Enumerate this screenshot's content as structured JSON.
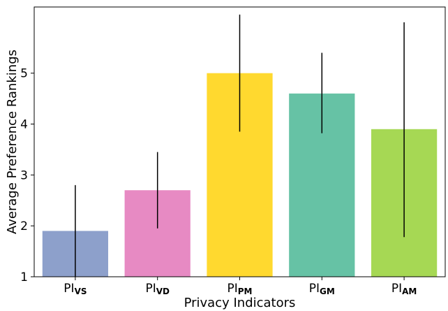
{
  "chart_data": {
    "type": "bar",
    "xlabel": "Privacy Indicators",
    "ylabel": "Average Preference Rankings",
    "ylim": [
      1,
      6.3
    ],
    "yticks": [
      1,
      2,
      3,
      4,
      5
    ],
    "grid": false,
    "categories": [
      {
        "base": "PI",
        "sub": "VS"
      },
      {
        "base": "PI",
        "sub": "VD"
      },
      {
        "base": "PI",
        "sub": "PM"
      },
      {
        "base": "PI",
        "sub": "GM"
      },
      {
        "base": "PI",
        "sub": "AM"
      }
    ],
    "values": [
      1.9,
      2.7,
      5.0,
      4.6,
      3.9
    ],
    "error_low": [
      1.0,
      1.95,
      3.85,
      3.82,
      1.78
    ],
    "error_high": [
      2.8,
      3.45,
      6.15,
      5.4,
      6.0
    ],
    "colors": [
      "#8da0cb",
      "#e78ac3",
      "#ffd92f",
      "#66c2a5",
      "#a6d854"
    ]
  }
}
